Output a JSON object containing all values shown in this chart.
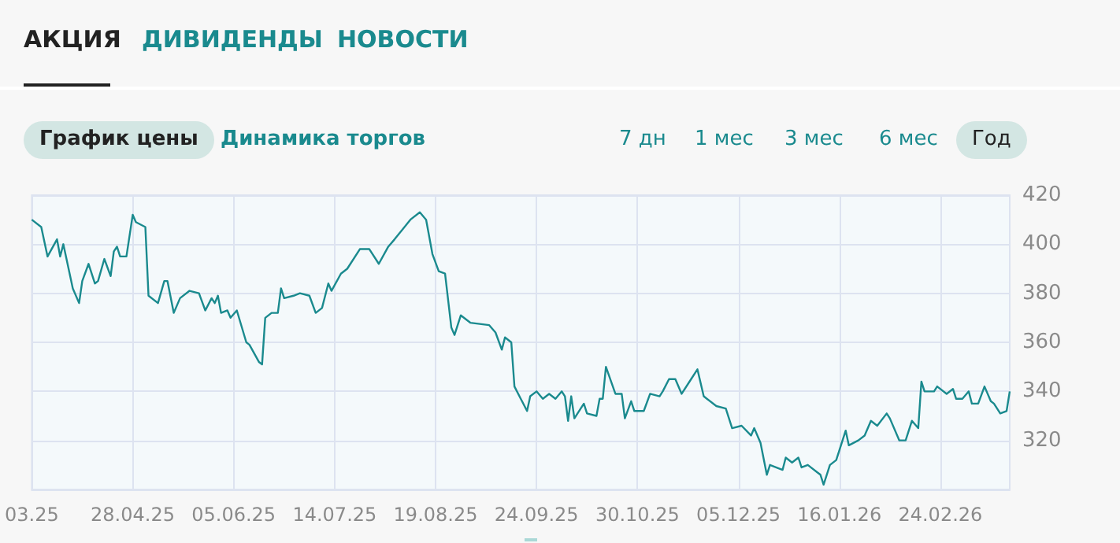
{
  "chart_data": {
    "type": "line",
    "annotations": [
      "АКЦИЯ",
      "ДИВИДЕНДЫ",
      "НОВОСТИ",
      "График цены",
      "Динамика торгов",
      "7 дн",
      "1 мес",
      "3 мес",
      "6 мес",
      "Год"
    ],
    "categories": [
      "03.25",
      null,
      null,
      null,
      null,
      null,
      null,
      null,
      null,
      null,
      null,
      null,
      null,
      null,
      null,
      null,
      null,
      null,
      null,
      null,
      null,
      null,
      null,
      null,
      null,
      null,
      null,
      null,
      null,
      null,
      null,
      null,
      "28.04.25",
      null,
      null,
      null,
      null,
      null,
      null,
      null,
      null,
      null,
      null,
      null,
      null,
      null,
      null,
      null,
      null,
      null,
      null,
      null,
      null,
      null,
      null,
      null,
      null,
      null,
      null,
      null,
      null,
      null,
      null,
      null,
      "05.06.25",
      null,
      null,
      null,
      null,
      null,
      null,
      null,
      null,
      null,
      null,
      null,
      null,
      null,
      null,
      null,
      null,
      null,
      null,
      null,
      null,
      null,
      null,
      null,
      null,
      null,
      null,
      null,
      null,
      null,
      null,
      null,
      "14.07.25",
      null,
      null,
      null,
      null,
      null,
      null,
      null,
      null,
      null,
      null,
      null,
      null,
      null,
      null,
      null,
      null,
      null,
      null,
      null,
      null,
      null,
      null,
      null,
      null,
      null,
      null,
      null,
      null,
      null,
      null,
      null,
      "19.08.25",
      null,
      null,
      null,
      null,
      null,
      null,
      null,
      null,
      null,
      null,
      null,
      null,
      null,
      null,
      null,
      null,
      null,
      null,
      null,
      null,
      null,
      null,
      null,
      null,
      null,
      null,
      null,
      null,
      null,
      null,
      null,
      "24.09.25",
      null,
      null,
      null,
      null,
      null,
      null,
      null,
      null,
      null,
      null,
      null,
      null,
      null,
      null,
      null,
      null,
      null,
      null,
      null,
      null,
      null,
      null,
      null,
      null,
      null,
      null,
      null,
      null,
      null,
      null,
      null,
      "30.10.25",
      null,
      null,
      null,
      null,
      null,
      null,
      null,
      null,
      null,
      null,
      null,
      null,
      null,
      null,
      null,
      null,
      null,
      null,
      null,
      null,
      null,
      null,
      null,
      null,
      null,
      null,
      null,
      null,
      null,
      null,
      null,
      "05.12.25",
      null,
      null,
      null,
      null,
      null,
      null,
      null,
      null,
      null,
      null,
      null,
      null,
      null,
      null,
      null,
      null,
      null,
      null,
      null,
      null,
      null,
      null,
      null,
      null,
      null,
      null,
      null,
      null,
      null,
      null,
      null,
      "16.01.26",
      null,
      null,
      null,
      null,
      null,
      null,
      null,
      null,
      null,
      null,
      null,
      null,
      null,
      null,
      null,
      null,
      null,
      null,
      null,
      null,
      null,
      null,
      null,
      null,
      null,
      null,
      null,
      null,
      null,
      null,
      null,
      "24.02.26",
      null,
      null,
      null,
      null,
      null,
      null,
      null,
      null,
      null,
      null,
      null,
      null,
      null,
      null,
      null,
      null,
      null,
      null,
      null,
      null,
      null,
      null
    ],
    "series": [
      {
        "color": "#1a8a8e",
        "values": [
          410,
          null,
          null,
          407,
          null,
          395,
          null,
          null,
          402,
          395,
          400,
          null,
          null,
          382,
          null,
          376,
          385,
          null,
          392,
          null,
          384,
          385,
          null,
          394,
          null,
          387,
          397,
          399,
          395,
          null,
          395,
          null,
          412,
          409,
          null,
          null,
          407,
          379,
          null,
          null,
          376,
          null,
          385,
          385,
          null,
          372,
          null,
          378,
          null,
          null,
          381,
          null,
          null,
          380,
          null,
          373,
          null,
          378,
          376,
          379,
          372,
          null,
          373,
          370,
          null,
          373,
          null,
          null,
          360,
          359,
          null,
          null,
          352,
          351,
          370,
          null,
          372,
          null,
          372,
          382,
          378,
          null,
          null,
          379,
          null,
          380,
          null,
          null,
          379,
          null,
          372,
          null,
          374,
          null,
          384,
          381,
          null,
          null,
          388,
          null,
          390,
          null,
          null,
          null,
          398,
          null,
          null,
          398,
          null,
          null,
          392,
          null,
          null,
          399,
          null,
          402,
          null,
          null,
          null,
          null,
          410,
          null,
          null,
          413,
          null,
          410,
          null,
          396,
          null,
          389,
          null,
          388,
          null,
          366,
          363,
          null,
          371,
          null,
          null,
          368,
          null,
          null,
          null,
          null,
          null,
          367,
          null,
          364,
          null,
          357,
          362,
          null,
          360,
          342,
          null,
          337,
          null,
          332,
          338,
          null,
          340,
          null,
          337,
          null,
          339,
          null,
          337,
          null,
          340,
          338,
          328,
          338,
          329,
          null,
          null,
          335,
          331,
          null,
          null,
          330,
          337,
          337,
          350,
          null,
          null,
          339,
          null,
          339,
          329,
          null,
          336,
          332,
          null,
          null,
          332,
          null,
          339,
          null,
          null,
          338,
          340,
          null,
          345,
          null,
          345,
          null,
          339,
          null,
          null,
          345,
          null,
          349,
          null,
          338,
          337,
          null,
          null,
          334,
          null,
          null,
          333,
          null,
          325,
          null,
          null,
          326,
          null,
          null,
          322,
          325,
          null,
          319,
          null,
          306,
          310,
          null,
          null,
          null,
          308,
          313,
          null,
          311,
          null,
          313,
          309,
          null,
          310,
          null,
          null,
          307,
          306,
          302,
          null,
          310,
          null,
          312,
          null,
          null,
          324,
          318,
          null,
          null,
          320,
          null,
          322,
          null,
          328,
          null,
          326,
          null,
          null,
          331,
          329,
          null,
          null,
          320,
          null,
          320,
          null,
          328,
          null,
          325,
          344,
          340,
          null,
          null,
          340,
          342,
          null,
          null,
          339,
          null,
          341,
          337,
          null,
          337,
          null,
          340,
          335,
          null,
          335,
          null,
          342,
          null,
          336,
          335,
          null,
          331,
          null,
          332,
          340
        ]
      }
    ],
    "ylim": [
      300,
      420
    ],
    "yticks": [
      320,
      340,
      360,
      380,
      400,
      420
    ],
    "grid": true,
    "marker": "none",
    "line_style": "solid"
  }
}
